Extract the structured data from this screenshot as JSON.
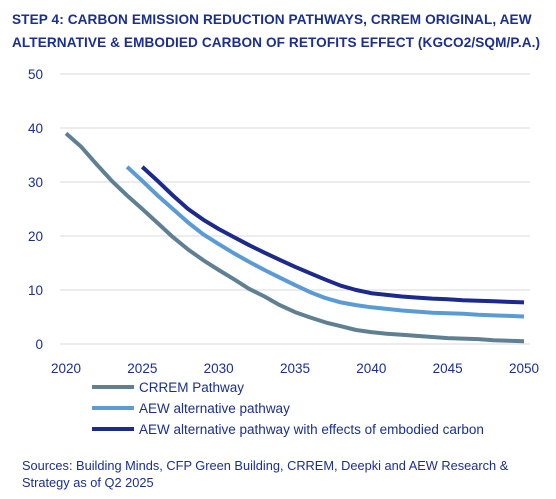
{
  "title_line1": "STEP 4: CARBON EMISSION REDUCTION PATHWAYS, CRREM ORIGINAL, AEW",
  "title_line2": "ALTERNATIVE & EMBODIED CARBON OF RETOFITS EFFECT (KGCO2/SQM/P.A.)",
  "source": "Sources: Building Minds, CFP Green Building, CRREM, Deepki and AEW Research & Strategy as of Q2 2025",
  "chart_data": {
    "type": "line",
    "title": "",
    "xlabel": "",
    "ylabel": "",
    "xlim": [
      2020,
      2050
    ],
    "ylim": [
      0,
      50
    ],
    "xticks": [
      2020,
      2025,
      2030,
      2035,
      2040,
      2045,
      2050
    ],
    "yticks": [
      0,
      10,
      20,
      30,
      40,
      50
    ],
    "grid": "horizontal",
    "legend_position": "bottom-left",
    "series": [
      {
        "name": "CRREM Pathway",
        "color": "#5f7f93",
        "x": [
          2020,
          2021,
          2022,
          2023,
          2024,
          2025,
          2026,
          2027,
          2028,
          2029,
          2030,
          2031,
          2032,
          2033,
          2034,
          2035,
          2036,
          2037,
          2038,
          2039,
          2040,
          2041,
          2042,
          2043,
          2044,
          2045,
          2046,
          2047,
          2048,
          2049,
          2050
        ],
        "y": [
          39,
          36.5,
          33.3,
          30.2,
          27.5,
          25,
          22.4,
          19.8,
          17.5,
          15.5,
          13.7,
          12,
          10.2,
          8.8,
          7.2,
          5.9,
          4.9,
          4,
          3.3,
          2.6,
          2.2,
          1.9,
          1.7,
          1.5,
          1.3,
          1.1,
          1,
          0.9,
          0.7,
          0.6,
          0.5
        ]
      },
      {
        "name": "AEW alternative pathway",
        "color": "#5b9bd5",
        "x": [
          2024,
          2025,
          2026,
          2027,
          2028,
          2029,
          2030,
          2031,
          2032,
          2033,
          2034,
          2035,
          2036,
          2037,
          2038,
          2039,
          2040,
          2041,
          2042,
          2043,
          2044,
          2045,
          2046,
          2047,
          2048,
          2049,
          2050
        ],
        "y": [
          32.8,
          30.2,
          27.5,
          25,
          22.5,
          20.3,
          18.5,
          16.8,
          15.2,
          13.7,
          12.3,
          10.9,
          9.6,
          8.5,
          7.7,
          7.2,
          6.8,
          6.5,
          6.2,
          6,
          5.8,
          5.7,
          5.6,
          5.4,
          5.3,
          5.2,
          5.1
        ]
      },
      {
        "name": "AEW alternative pathway with effects of embodied carbon",
        "color": "#1b2a8c",
        "x": [
          2025,
          2026,
          2027,
          2028,
          2029,
          2030,
          2031,
          2032,
          2033,
          2034,
          2035,
          2036,
          2037,
          2038,
          2039,
          2040,
          2041,
          2042,
          2043,
          2044,
          2045,
          2046,
          2047,
          2048,
          2049,
          2050
        ],
        "y": [
          32.8,
          30.2,
          27.5,
          25,
          23,
          21.3,
          19.8,
          18.3,
          16.9,
          15.6,
          14.3,
          13.1,
          11.9,
          10.8,
          10,
          9.4,
          9.1,
          8.8,
          8.6,
          8.4,
          8.3,
          8.1,
          8,
          7.9,
          7.8,
          7.7
        ]
      }
    ]
  }
}
